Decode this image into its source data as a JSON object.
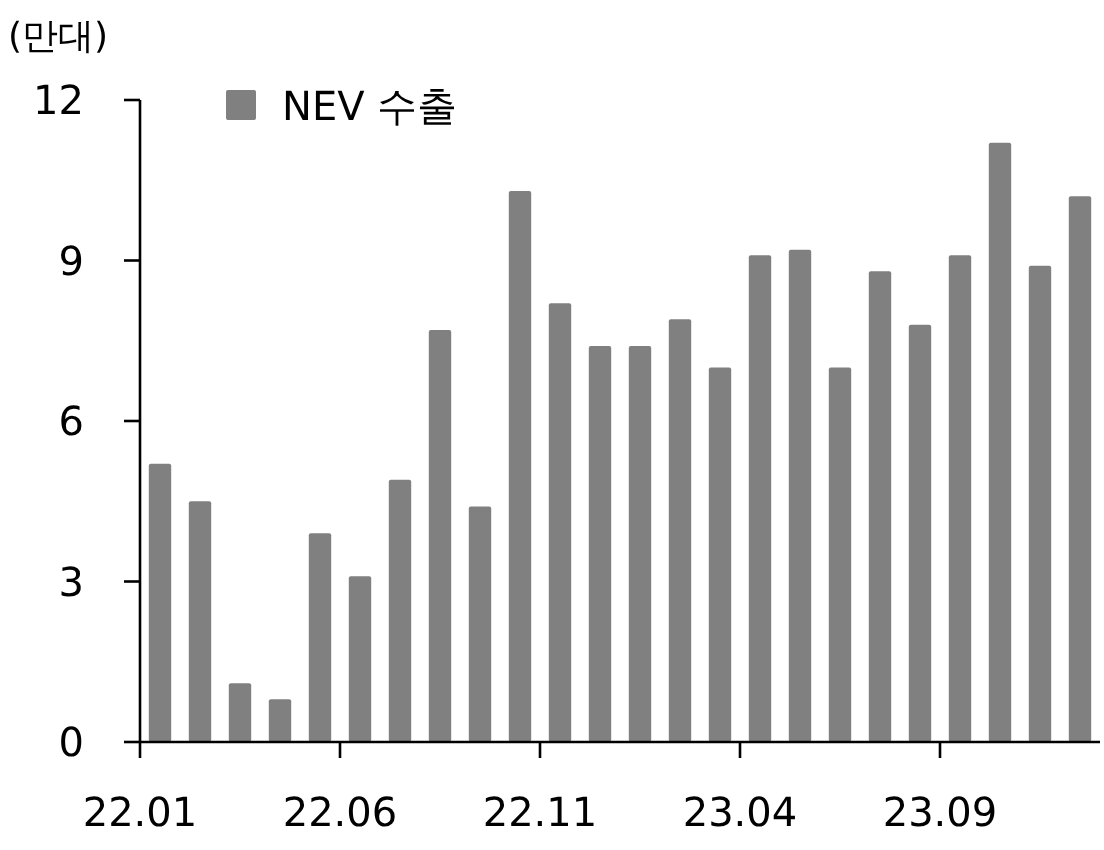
{
  "chart_data": {
    "type": "bar",
    "ylabel": "(만대)",
    "categories": [
      "22.01",
      null,
      null,
      null,
      null,
      "22.06",
      null,
      null,
      null,
      null,
      "22.11",
      null,
      null,
      null,
      null,
      "23.04",
      null,
      null,
      null,
      null,
      "23.09",
      null,
      null,
      null
    ],
    "series": [
      {
        "name": "NEV 수출",
        "color": "#808080",
        "values": [
          5.2,
          4.5,
          1.1,
          0.8,
          3.9,
          3.1,
          4.9,
          7.7,
          4.4,
          10.3,
          8.2,
          7.4,
          7.4,
          7.9,
          7.0,
          9.1,
          9.2,
          7.0,
          8.8,
          7.8,
          9.1,
          11.2,
          8.9,
          10.2
        ]
      }
    ],
    "ylim": [
      0,
      12
    ],
    "yticks": [
      0,
      3,
      6,
      9,
      12
    ],
    "legend": "top left",
    "grid": false
  }
}
